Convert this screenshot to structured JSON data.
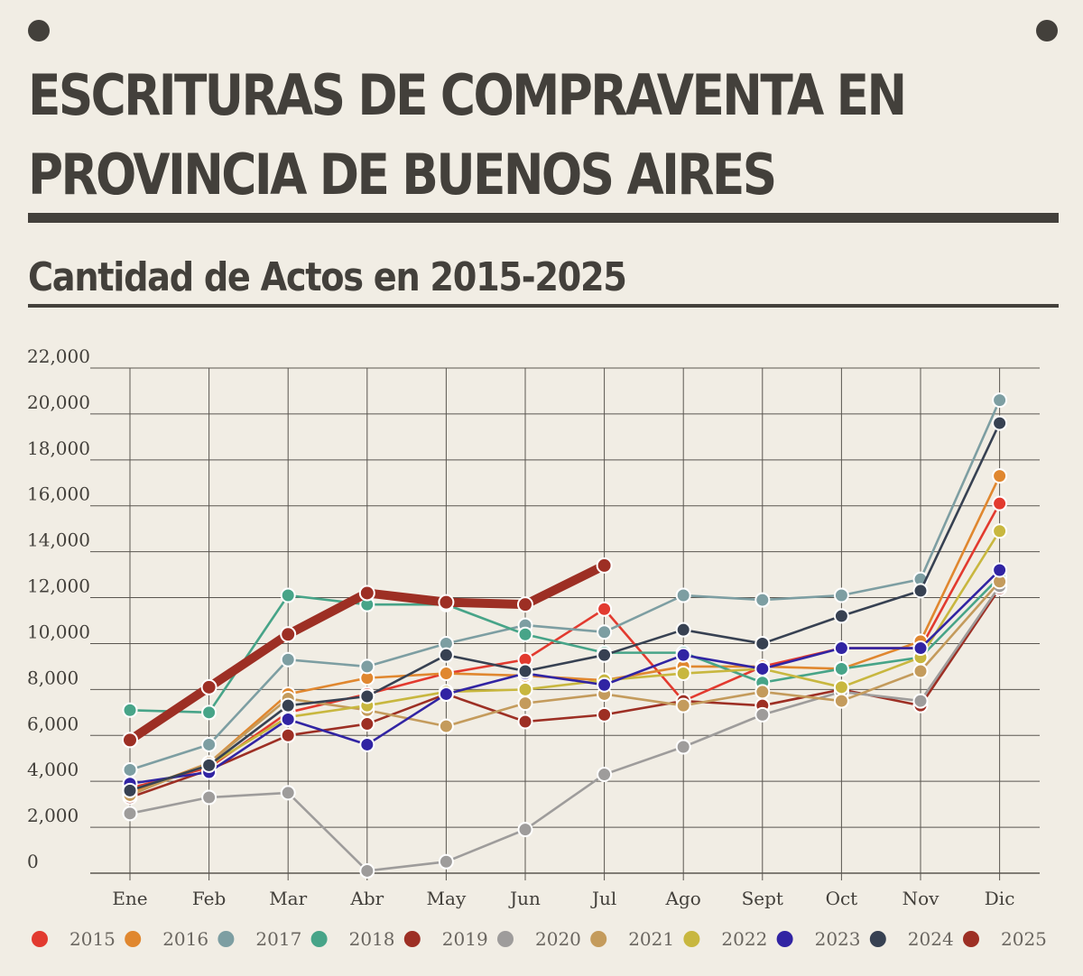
{
  "title_line1": "ESCRITURAS DE COMPRAVENTA EN",
  "title_line2": "PROVINCIA DE BUENOS AIRES",
  "subtitle": "Cantidad de Actos en 2015-2025",
  "chart_data": {
    "type": "line",
    "title": "ESCRITURAS DE COMPRAVENTA EN PROVINCIA DE BUENOS AIRES",
    "subtitle": "Cantidad de Actos en 2015-2025",
    "xlabel": "",
    "ylabel": "",
    "ylim": [
      0,
      22000
    ],
    "yticks": [
      0,
      2000,
      4000,
      6000,
      8000,
      10000,
      12000,
      14000,
      16000,
      18000,
      20000,
      22000
    ],
    "ytick_labels": [
      "0",
      "2,000",
      "4,000",
      "6,000",
      "8,000",
      "10,000",
      "12,000",
      "14,000",
      "16,000",
      "18,000",
      "20,000",
      "22,000"
    ],
    "grid": true,
    "legend_position": "bottom",
    "categories": [
      "Ene",
      "Feb",
      "Mar",
      "Abr",
      "May",
      "Jun",
      "Jul",
      "Ago",
      "Sept",
      "Oct",
      "Nov",
      "Dic"
    ],
    "series": [
      {
        "name": "2015",
        "color": "#e23a2f",
        "values": [
          3700,
          4600,
          7000,
          7800,
          8700,
          9300,
          11500,
          7500,
          9000,
          9800,
          9800,
          16100
        ]
      },
      {
        "name": "2016",
        "color": "#e0872f",
        "values": [
          3500,
          4800,
          7800,
          8500,
          8700,
          8600,
          8400,
          9000,
          9000,
          8900,
          10100,
          17300
        ]
      },
      {
        "name": "2017",
        "color": "#7d9ea2",
        "values": [
          4500,
          5600,
          9300,
          9000,
          10000,
          10800,
          10500,
          12100,
          11900,
          12100,
          12800,
          20600
        ]
      },
      {
        "name": "2018",
        "color": "#47a488",
        "values": [
          7100,
          7000,
          12100,
          11700,
          11700,
          10400,
          9600,
          9600,
          8300,
          8900,
          9400,
          12900
        ]
      },
      {
        "name": "2019",
        "color": "#9d2f24",
        "values": [
          3300,
          4500,
          6000,
          6500,
          7800,
          6600,
          6900,
          7500,
          7300,
          8000,
          7300,
          12400
        ]
      },
      {
        "name": "2020",
        "color": "#9e9c9b",
        "values": [
          2600,
          3300,
          3500,
          100,
          500,
          1900,
          4300,
          5500,
          6900,
          7900,
          7500,
          12500
        ]
      },
      {
        "name": "2021",
        "color": "#c49b5c",
        "values": [
          3400,
          4800,
          7600,
          7100,
          6400,
          7400,
          7800,
          7300,
          7900,
          7500,
          8800,
          12700
        ]
      },
      {
        "name": "2022",
        "color": "#c8b73f",
        "values": [
          3600,
          4700,
          6800,
          7300,
          7900,
          8000,
          8400,
          8700,
          8900,
          8100,
          9400,
          14900
        ]
      },
      {
        "name": "2023",
        "color": "#3124a3",
        "values": [
          3900,
          4400,
          6700,
          5600,
          7800,
          8700,
          8200,
          9500,
          8900,
          9800,
          9800,
          13200
        ]
      },
      {
        "name": "2024",
        "color": "#374152",
        "values": [
          3600,
          4700,
          7300,
          7700,
          9500,
          8800,
          9500,
          10600,
          10000,
          11200,
          12300,
          19600
        ]
      },
      {
        "name": "2025",
        "color": "#9d2f24",
        "values": [
          5800,
          8100,
          10400,
          12200,
          11800,
          11700,
          13400,
          null,
          null,
          null,
          null,
          null
        ]
      }
    ]
  }
}
